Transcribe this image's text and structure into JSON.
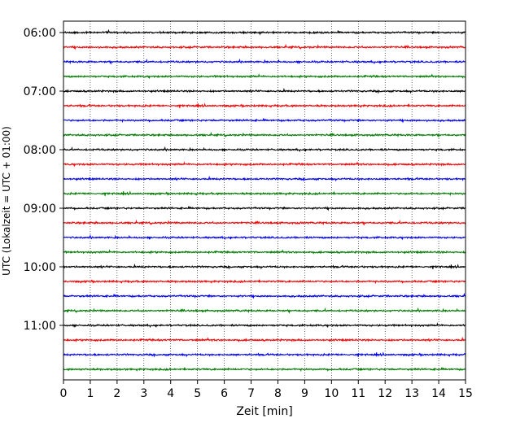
{
  "chart_data": {
    "type": "line",
    "title": "",
    "xlabel": "Zeit  [min]",
    "ylabel": "UTC (Lokalzeit = UTC + 01:00)",
    "xlim": [
      0,
      15
    ],
    "x_ticks": [
      0,
      1,
      2,
      3,
      4,
      5,
      6,
      7,
      8,
      9,
      10,
      11,
      12,
      13,
      14,
      15
    ],
    "x_tick_labels": [
      "0",
      "1",
      "2",
      "3",
      "4",
      "5",
      "6",
      "7",
      "8",
      "9",
      "10",
      "11",
      "12",
      "13",
      "14",
      "15"
    ],
    "y_tick_labels": [
      "06:00",
      "07:00",
      "08:00",
      "09:00",
      "10:00",
      "11:00"
    ],
    "grid": "vertical dotted",
    "legend": "none",
    "trace_interval_minutes": 15,
    "trace_colors": [
      "#000000",
      "#ff0000",
      "#0000ff",
      "#007f00"
    ],
    "trace_start_times": [
      "06:00",
      "06:15",
      "06:30",
      "06:45",
      "07:00",
      "07:15",
      "07:30",
      "07:45",
      "08:00",
      "08:15",
      "08:30",
      "08:45",
      "09:00",
      "09:15",
      "09:30",
      "09:45",
      "10:00",
      "10:15",
      "10:30",
      "10:45",
      "11:00",
      "11:15",
      "11:30",
      "11:45"
    ]
  }
}
